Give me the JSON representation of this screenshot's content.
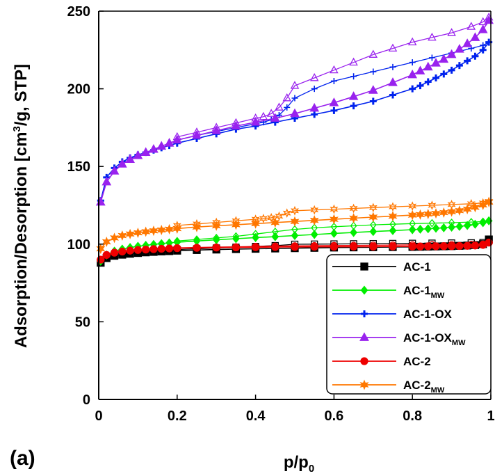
{
  "chart_data": {
    "type": "line",
    "title": "",
    "panel_label": "(a)",
    "xlabel": "p/p",
    "xlabel_sub": "0",
    "ylabel": "Adsorption/Desorption  [cm",
    "ylabel_sup": "3",
    "ylabel_tail": "/g, STP]",
    "xlim": [
      0,
      1
    ],
    "ylim": [
      0,
      250
    ],
    "xticks": [
      0,
      0.2,
      0.4,
      0.6,
      0.8,
      1
    ],
    "xtick_labels": [
      "0",
      "0.2",
      "0.4",
      "0.6",
      "0.8",
      "1"
    ],
    "yticks": [
      0,
      50,
      100,
      150,
      200,
      250
    ],
    "ytick_labels": [
      "0",
      "50",
      "100",
      "150",
      "200",
      "250"
    ],
    "legend_position": "bottom-right",
    "series": [
      {
        "name": "AC-1",
        "name_sub": "",
        "color": "#000000",
        "marker": "square",
        "adsorption": {
          "x": [
            0.005,
            0.02,
            0.04,
            0.06,
            0.08,
            0.1,
            0.12,
            0.14,
            0.16,
            0.18,
            0.2,
            0.25,
            0.3,
            0.35,
            0.4,
            0.45,
            0.5,
            0.55,
            0.6,
            0.65,
            0.7,
            0.75,
            0.8,
            0.82,
            0.84,
            0.86,
            0.88,
            0.9,
            0.92,
            0.94,
            0.96,
            0.98,
            0.995
          ],
          "y": [
            88,
            91,
            92.5,
            93.2,
            93.8,
            94.3,
            94.7,
            95,
            95.3,
            95.5,
            95.8,
            96.2,
            96.5,
            96.8,
            97,
            97.2,
            97.4,
            97.6,
            97.8,
            97.9,
            98,
            98.1,
            98.2,
            98.3,
            98.4,
            98.5,
            98.6,
            98.7,
            98.9,
            99.1,
            99.4,
            100,
            103
          ]
        },
        "desorption": {
          "x": [
            0.995,
            0.98,
            0.95,
            0.9,
            0.85,
            0.8,
            0.75,
            0.7,
            0.65,
            0.6,
            0.55,
            0.5,
            0.45,
            0.4,
            0.35,
            0.3,
            0.25,
            0.2
          ],
          "y": [
            103,
            101,
            100.8,
            100.7,
            100.6,
            100.5,
            100.4,
            100.3,
            100.2,
            100.1,
            100,
            99.9,
            99,
            98.5,
            98,
            97.5,
            97,
            96.5
          ]
        }
      },
      {
        "name": "AC-1",
        "name_sub": "MW",
        "color": "#00ee00",
        "marker": "diamond",
        "adsorption": {
          "x": [
            0.005,
            0.02,
            0.04,
            0.06,
            0.08,
            0.1,
            0.12,
            0.14,
            0.16,
            0.18,
            0.2,
            0.25,
            0.3,
            0.35,
            0.4,
            0.45,
            0.5,
            0.55,
            0.6,
            0.65,
            0.7,
            0.75,
            0.8,
            0.82,
            0.84,
            0.86,
            0.88,
            0.9,
            0.92,
            0.94,
            0.96,
            0.98,
            0.995
          ],
          "y": [
            89,
            93,
            95.5,
            96.8,
            97.8,
            98.6,
            99.2,
            99.8,
            100.3,
            100.8,
            101.2,
            102,
            102.8,
            103.5,
            104.2,
            104.8,
            105.5,
            106.2,
            106.9,
            107.5,
            108.1,
            108.7,
            109.3,
            109.6,
            109.9,
            110.2,
            110.5,
            110.9,
            111.4,
            112,
            112.8,
            113.8,
            115
          ]
        },
        "desorption": {
          "x": [
            0.995,
            0.98,
            0.95,
            0.9,
            0.85,
            0.8,
            0.75,
            0.7,
            0.65,
            0.6,
            0.55,
            0.5,
            0.45,
            0.4,
            0.35,
            0.3,
            0.25,
            0.2
          ],
          "y": [
            115,
            114.5,
            114.2,
            113.8,
            113.5,
            113.2,
            112.8,
            112.4,
            111.8,
            111.2,
            110.5,
            109.5,
            108,
            106.5,
            105,
            104,
            103,
            102
          ]
        }
      },
      {
        "name": "AC-1-OX",
        "name_sub": "",
        "color": "#0022ee",
        "marker": "plus",
        "adsorption": {
          "x": [
            0.005,
            0.02,
            0.04,
            0.06,
            0.08,
            0.1,
            0.12,
            0.14,
            0.16,
            0.18,
            0.2,
            0.25,
            0.3,
            0.35,
            0.4,
            0.45,
            0.5,
            0.55,
            0.6,
            0.65,
            0.7,
            0.75,
            0.8,
            0.82,
            0.84,
            0.86,
            0.88,
            0.9,
            0.92,
            0.94,
            0.96,
            0.98,
            0.995
          ],
          "y": [
            128,
            143,
            149,
            153,
            155.5,
            157.5,
            159,
            160.5,
            162,
            163.5,
            165,
            168,
            171,
            174,
            176,
            178.5,
            181,
            183.5,
            186,
            189,
            192,
            196,
            200,
            202,
            204.5,
            207,
            209.5,
            212,
            215,
            218,
            221,
            225,
            230
          ]
        },
        "desorption": {
          "x": [
            0.995,
            0.98,
            0.95,
            0.9,
            0.85,
            0.8,
            0.75,
            0.7,
            0.65,
            0.6,
            0.55,
            0.5,
            0.48,
            0.46,
            0.44,
            0.42,
            0.4,
            0.35,
            0.3,
            0.25,
            0.2
          ],
          "y": [
            230,
            228,
            226,
            223,
            220,
            217,
            214,
            211,
            208,
            205,
            200,
            194,
            188,
            183,
            180,
            178.5,
            177.5,
            175,
            172.5,
            170,
            167
          ]
        }
      },
      {
        "name": "AC-1-OX",
        "name_sub": "MW",
        "color": "#9922ee",
        "marker": "triangle",
        "adsorption": {
          "x": [
            0.005,
            0.02,
            0.04,
            0.06,
            0.08,
            0.1,
            0.12,
            0.14,
            0.16,
            0.18,
            0.2,
            0.25,
            0.3,
            0.35,
            0.4,
            0.45,
            0.5,
            0.55,
            0.6,
            0.65,
            0.7,
            0.75,
            0.8,
            0.82,
            0.84,
            0.86,
            0.88,
            0.9,
            0.92,
            0.94,
            0.96,
            0.98,
            0.995
          ],
          "y": [
            127,
            140,
            147,
            151.5,
            154.5,
            157,
            159,
            161,
            163,
            165,
            167,
            170,
            173,
            176,
            178.5,
            181,
            184,
            187.5,
            191,
            195,
            199,
            204,
            209,
            211.5,
            214,
            216.5,
            219,
            222,
            225.5,
            229,
            233,
            238,
            244
          ]
        },
        "desorption": {
          "x": [
            0.995,
            0.98,
            0.95,
            0.9,
            0.85,
            0.8,
            0.75,
            0.7,
            0.65,
            0.6,
            0.55,
            0.5,
            0.48,
            0.46,
            0.44,
            0.42,
            0.4,
            0.35,
            0.3,
            0.25,
            0.2
          ],
          "y": [
            246,
            243,
            240,
            236,
            233,
            230,
            226,
            222,
            217,
            212,
            207,
            202,
            194,
            188,
            184,
            182,
            181,
            178,
            175,
            172,
            169
          ]
        }
      },
      {
        "name": "AC-2",
        "name_sub": "",
        "color": "#ee0000",
        "marker": "circle",
        "adsorption": {
          "x": [
            0.005,
            0.02,
            0.04,
            0.06,
            0.08,
            0.1,
            0.12,
            0.14,
            0.16,
            0.18,
            0.2,
            0.25,
            0.3,
            0.35,
            0.4,
            0.45,
            0.5,
            0.55,
            0.6,
            0.65,
            0.7,
            0.75,
            0.8,
            0.82,
            0.84,
            0.86,
            0.88,
            0.9,
            0.92,
            0.94,
            0.96,
            0.98,
            0.995
          ],
          "y": [
            90,
            93,
            94.5,
            95.2,
            95.8,
            96.2,
            96.5,
            96.8,
            97,
            97.2,
            97.4,
            97.6,
            97.8,
            97.9,
            98,
            98.1,
            98.2,
            98.3,
            98.3,
            98.4,
            98.4,
            98.5,
            98.5,
            98.5,
            98.6,
            98.6,
            98.7,
            98.7,
            98.8,
            98.9,
            99.1,
            99.5,
            101
          ]
        },
        "desorption": {
          "x": [
            0.995,
            0.98,
            0.95,
            0.9,
            0.85,
            0.8,
            0.75,
            0.7,
            0.65,
            0.6,
            0.55,
            0.5,
            0.45,
            0.4,
            0.35,
            0.3,
            0.25,
            0.2
          ],
          "y": [
            101,
            100,
            99.8,
            99.7,
            99.6,
            99.5,
            99.4,
            99.3,
            99.2,
            99.1,
            99,
            98.9,
            98.7,
            98.5,
            98.3,
            98.1,
            97.9,
            97.6
          ]
        }
      },
      {
        "name": "AC-2",
        "name_sub": "MW",
        "color": "#ff7700",
        "marker": "star",
        "adsorption": {
          "x": [
            0.005,
            0.02,
            0.04,
            0.06,
            0.08,
            0.1,
            0.12,
            0.14,
            0.16,
            0.18,
            0.2,
            0.25,
            0.3,
            0.35,
            0.4,
            0.45,
            0.5,
            0.55,
            0.6,
            0.65,
            0.7,
            0.75,
            0.8,
            0.82,
            0.84,
            0.86,
            0.88,
            0.9,
            0.92,
            0.94,
            0.96,
            0.98,
            0.995
          ],
          "y": [
            97,
            101.5,
            104,
            105.5,
            106.5,
            107.3,
            108,
            108.6,
            109.1,
            109.6,
            110,
            111,
            111.8,
            112.5,
            113.2,
            113.9,
            114.6,
            115.3,
            116,
            116.7,
            117.4,
            118,
            118.7,
            119,
            119.4,
            119.8,
            120.3,
            120.9,
            121.6,
            122.5,
            123.7,
            125.2,
            127
          ]
        },
        "desorption": {
          "x": [
            0.995,
            0.98,
            0.95,
            0.9,
            0.85,
            0.8,
            0.75,
            0.7,
            0.65,
            0.6,
            0.55,
            0.5,
            0.48,
            0.46,
            0.44,
            0.42,
            0.4,
            0.35,
            0.3,
            0.25,
            0.2
          ],
          "y": [
            127.5,
            126.5,
            126,
            125.5,
            125,
            124.5,
            124,
            123.5,
            123,
            122.5,
            122,
            121.5,
            120,
            118,
            117,
            116.5,
            116,
            115,
            114,
            113,
            112
          ]
        }
      }
    ]
  }
}
